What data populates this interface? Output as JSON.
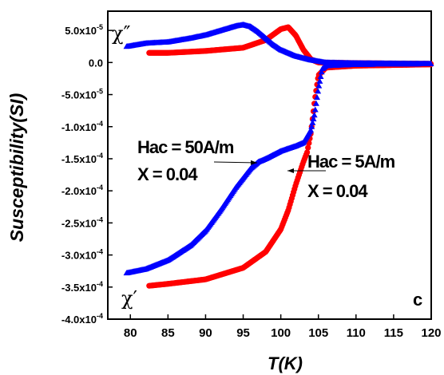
{
  "chart_data": {
    "type": "scatter",
    "title": "",
    "xlabel": "T(K)",
    "ylabel": "Susceptibility(SI)",
    "xlim": [
      77,
      120
    ],
    "ylim": [
      -0.0004,
      8e-05
    ],
    "x_ticks": [
      80,
      85,
      90,
      95,
      100,
      105,
      110,
      115,
      120
    ],
    "x_tick_labels": [
      "80",
      "85",
      "90",
      "95",
      "100",
      "105",
      "110",
      "115",
      "120"
    ],
    "y_ticks": [
      5e-05,
      0.0,
      -5e-05,
      -0.0001,
      -0.00015,
      -0.0002,
      -0.00025,
      -0.0003,
      -0.00035,
      -0.0004
    ],
    "y_tick_labels": [
      {
        "mant": "5.0x10",
        "exp": "-5"
      },
      {
        "mant": "0.0",
        "exp": ""
      },
      {
        "mant": "-5.0x10",
        "exp": "-5"
      },
      {
        "mant": "-1.0x10",
        "exp": "-4"
      },
      {
        "mant": "-1.5x10",
        "exp": "-4"
      },
      {
        "mant": "-2.0x10",
        "exp": "-4"
      },
      {
        "mant": "-2.5x10",
        "exp": "-4"
      },
      {
        "mant": "-3.0x10",
        "exp": "-4"
      },
      {
        "mant": "-3.5x10",
        "exp": "-4"
      },
      {
        "mant": "-4.0x10",
        "exp": "-4"
      }
    ],
    "grid": false,
    "series": [
      {
        "name": "",
        "color": "#ff0000",
        "marker": "circle",
        "x": [
          82.5,
          85,
          90,
          95,
          98,
          100,
          101,
          102,
          103,
          103.5,
          104,
          104.5,
          105,
          106,
          110,
          120
        ],
        "y": [
          -0.000348,
          -0.000345,
          -0.000338,
          -0.00032,
          -0.000295,
          -0.00026,
          -0.00023,
          -0.00019,
          -0.000155,
          -0.00014,
          -0.00011,
          -6e-05,
          -2e-05,
          -8e-06,
          -5e-06,
          -3e-06
        ]
      },
      {
        "name": "",
        "color": "#ff0000",
        "marker": "circle",
        "x": [
          82.5,
          85,
          90,
          95,
          98,
          100,
          101,
          102,
          103,
          104,
          105,
          110,
          120
        ],
        "y": [
          1.5e-05,
          1.5e-05,
          1.8e-05,
          2.3e-05,
          3.5e-05,
          5.2e-05,
          5.5e-05,
          4.2e-05,
          2e-05,
          5e-06,
          0.0,
          -1e-06,
          -2e-06
        ]
      },
      {
        "name": "",
        "color": "#0000ff",
        "marker": "triangle",
        "x": [
          79.5,
          82,
          85,
          88,
          90,
          92,
          94,
          96,
          97,
          98,
          100,
          102,
          103,
          104,
          104.5,
          105,
          105.5,
          106,
          110,
          120
        ],
        "y": [
          -0.000328,
          -0.000322,
          -0.000308,
          -0.000285,
          -0.000262,
          -0.00023,
          -0.000195,
          -0.000165,
          -0.000155,
          -0.00015,
          -0.000138,
          -0.00013,
          -0.000125,
          -0.000105,
          -8e-05,
          -4e-05,
          -1e-05,
          -5e-06,
          -3e-06,
          -2e-06
        ]
      },
      {
        "name": "",
        "color": "#0000ff",
        "marker": "triangle",
        "x": [
          79.5,
          82,
          85,
          88,
          90,
          92,
          94,
          95,
          96,
          97,
          98,
          99,
          100,
          102,
          104,
          106,
          110,
          120
        ],
        "y": [
          2.5e-05,
          3e-05,
          3.2e-05,
          3.8e-05,
          4.3e-05,
          5e-05,
          5.7e-05,
          5.9e-05,
          5.6e-05,
          4.8e-05,
          3.8e-05,
          2.8e-05,
          2e-05,
          1e-05,
          4e-06,
          0.0,
          -1e-06,
          -2e-06
        ]
      }
    ],
    "annotations": {
      "blue_label_line1": "Hac = 50A/m",
      "blue_label_line2": "X = 0.04",
      "red_label_line1": "Hac = 5A/m",
      "red_label_line2": "X = 0.04",
      "chi_double_prime": "χ″",
      "chi_prime": "χ′",
      "panel_letter": "c"
    }
  }
}
